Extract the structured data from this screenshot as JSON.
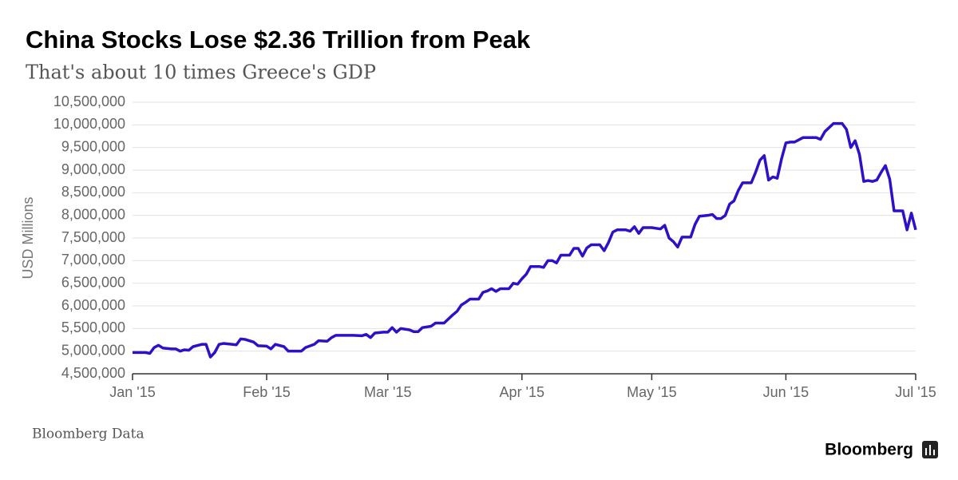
{
  "chart_data": {
    "type": "line",
    "title": "China Stocks Lose $2.36 Trillion from Peak",
    "subtitle": "That's about 10 times Greece's GDP",
    "ylabel": "USD Millions",
    "source": "Bloomberg Data",
    "brand": "Bloomberg",
    "grid": true,
    "xlim": [
      0,
      181
    ],
    "xticks": [
      {
        "value": 0,
        "label": "Jan '15"
      },
      {
        "value": 31,
        "label": "Feb '15"
      },
      {
        "value": 59,
        "label": "Mar '15"
      },
      {
        "value": 90,
        "label": "Apr '15"
      },
      {
        "value": 120,
        "label": "May '15"
      },
      {
        "value": 151,
        "label": "Jun '15"
      },
      {
        "value": 181,
        "label": "Jul '15"
      }
    ],
    "ylim": [
      4500000,
      10500000
    ],
    "yticks": [
      {
        "value": 4500000,
        "label": "4,500,000"
      },
      {
        "value": 5000000,
        "label": "5,000,000"
      },
      {
        "value": 5500000,
        "label": "5,500,000"
      },
      {
        "value": 6000000,
        "label": "6,000,000"
      },
      {
        "value": 6500000,
        "label": "6,500,000"
      },
      {
        "value": 7000000,
        "label": "7,000,000"
      },
      {
        "value": 7500000,
        "label": "7,500,000"
      },
      {
        "value": 8000000,
        "label": "8,000,000"
      },
      {
        "value": 8500000,
        "label": "8,500,000"
      },
      {
        "value": 9000000,
        "label": "9,000,000"
      },
      {
        "value": 9500000,
        "label": "9,500,000"
      },
      {
        "value": 10000000,
        "label": "10,000,000"
      },
      {
        "value": 10500000,
        "label": "10,500,000"
      }
    ],
    "x": [
      0,
      3,
      4,
      5,
      6,
      7,
      9,
      10,
      11,
      12,
      13,
      14,
      16,
      17,
      18,
      19,
      20,
      21,
      23,
      24,
      25,
      26,
      28,
      29,
      31,
      32,
      33,
      35,
      36,
      38,
      39,
      40,
      42,
      43,
      45,
      46,
      47,
      51,
      53,
      54,
      55,
      56,
      58,
      59,
      60,
      61,
      62,
      64,
      65,
      66,
      67,
      69,
      70,
      72,
      74,
      75,
      76,
      77,
      78,
      80,
      81,
      82,
      83,
      84,
      85,
      87,
      88,
      89,
      90,
      91,
      92,
      94,
      95,
      96,
      97,
      98,
      99,
      101,
      102,
      103,
      104,
      105,
      106,
      108,
      109,
      110,
      111,
      112,
      114,
      115,
      116,
      117,
      118,
      120,
      122,
      123,
      124,
      125,
      126,
      127,
      129,
      130,
      131,
      133,
      134,
      135,
      136,
      137,
      138,
      139,
      140,
      141,
      143,
      144,
      145,
      146,
      147,
      148,
      149,
      150,
      151,
      152,
      153,
      155,
      158,
      159,
      160,
      162,
      164,
      165,
      166,
      167,
      168,
      169,
      170,
      171,
      172,
      173,
      174,
      175,
      176,
      178,
      179,
      180,
      181
    ],
    "series": [
      {
        "name": "USD Millions",
        "color": "#2f10c8",
        "values": [
          4970000,
          4970000,
          4950000,
          5080000,
          5130000,
          5070000,
          5050000,
          5050000,
          5000000,
          5030000,
          5020000,
          5100000,
          5150000,
          5150000,
          4870000,
          4970000,
          5150000,
          5170000,
          5150000,
          5140000,
          5270000,
          5260000,
          5200000,
          5120000,
          5110000,
          5050000,
          5150000,
          5100000,
          5000000,
          5000000,
          5000000,
          5080000,
          5150000,
          5230000,
          5220000,
          5300000,
          5350000,
          5350000,
          5340000,
          5370000,
          5300000,
          5400000,
          5420000,
          5420000,
          5520000,
          5420000,
          5500000,
          5470000,
          5430000,
          5430000,
          5520000,
          5550000,
          5620000,
          5620000,
          5800000,
          5880000,
          6020000,
          6080000,
          6150000,
          6150000,
          6300000,
          6330000,
          6380000,
          6320000,
          6380000,
          6380000,
          6500000,
          6480000,
          6600000,
          6700000,
          6870000,
          6870000,
          6850000,
          7000000,
          7000000,
          6950000,
          7120000,
          7120000,
          7270000,
          7270000,
          7100000,
          7280000,
          7350000,
          7350000,
          7220000,
          7400000,
          7630000,
          7680000,
          7680000,
          7650000,
          7750000,
          7600000,
          7730000,
          7730000,
          7700000,
          7780000,
          7500000,
          7420000,
          7300000,
          7520000,
          7520000,
          7800000,
          7980000,
          8000000,
          8020000,
          7930000,
          7930000,
          8000000,
          8250000,
          8320000,
          8550000,
          8720000,
          8720000,
          8950000,
          9220000,
          9320000,
          8780000,
          8850000,
          8820000,
          9250000,
          9600000,
          9620000,
          9620000,
          9720000,
          9720000,
          9680000,
          9850000,
          10030000,
          10030000,
          9900000,
          9500000,
          9650000,
          9350000,
          8750000,
          8770000,
          8750000,
          8780000,
          8950000,
          9100000,
          8800000,
          8100000,
          8100000,
          7680000,
          8050000,
          7680000
        ]
      }
    ]
  }
}
